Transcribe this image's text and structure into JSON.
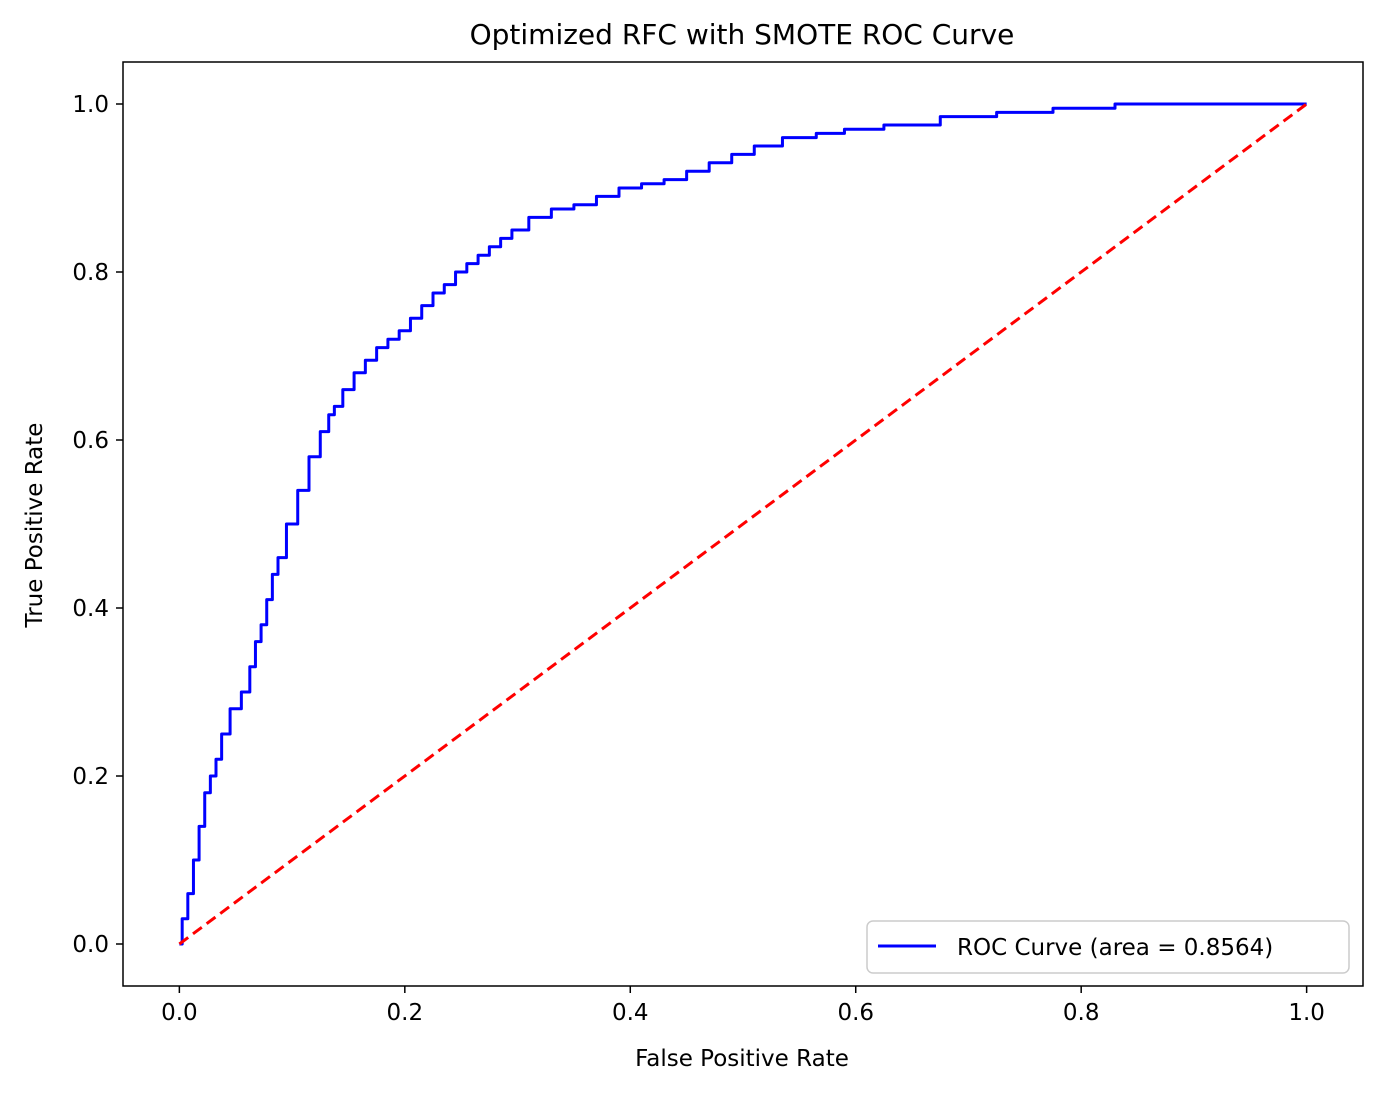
{
  "chart_data": {
    "type": "line",
    "title": "Optimized RFC with SMOTE ROC Curve",
    "xlabel": "False Positive Rate",
    "ylabel": "True Positive Rate",
    "xlim": [
      -0.05,
      1.05
    ],
    "ylim": [
      -0.05,
      1.05
    ],
    "xticks": [
      0.0,
      0.2,
      0.4,
      0.6,
      0.8,
      1.0
    ],
    "xtick_labels": [
      "0.0",
      "0.2",
      "0.4",
      "0.6",
      "0.8",
      "1.0"
    ],
    "yticks": [
      0.0,
      0.2,
      0.4,
      0.6,
      0.8,
      1.0
    ],
    "ytick_labels": [
      "0.0",
      "0.2",
      "0.4",
      "0.6",
      "0.8",
      "1.0"
    ],
    "grid": false,
    "legend_position": "lower-right",
    "series": [
      {
        "name": "ROC Curve (area = 0.8564)",
        "color": "#0000ff",
        "style": "solid",
        "x": [
          0.0,
          0.005,
          0.01,
          0.015,
          0.02,
          0.025,
          0.03,
          0.035,
          0.04,
          0.05,
          0.06,
          0.065,
          0.07,
          0.075,
          0.08,
          0.085,
          0.09,
          0.1,
          0.11,
          0.12,
          0.13,
          0.135,
          0.14,
          0.15,
          0.16,
          0.17,
          0.18,
          0.19,
          0.2,
          0.21,
          0.22,
          0.23,
          0.24,
          0.25,
          0.26,
          0.27,
          0.28,
          0.29,
          0.3,
          0.32,
          0.34,
          0.36,
          0.38,
          0.4,
          0.42,
          0.44,
          0.46,
          0.48,
          0.5,
          0.52,
          0.55,
          0.58,
          0.6,
          0.65,
          0.7,
          0.75,
          0.8,
          0.86,
          0.9,
          1.0
        ],
        "y": [
          0.0,
          0.03,
          0.06,
          0.1,
          0.14,
          0.18,
          0.2,
          0.22,
          0.25,
          0.28,
          0.3,
          0.33,
          0.36,
          0.38,
          0.41,
          0.44,
          0.46,
          0.5,
          0.54,
          0.58,
          0.61,
          0.63,
          0.64,
          0.66,
          0.68,
          0.695,
          0.71,
          0.72,
          0.73,
          0.745,
          0.76,
          0.775,
          0.785,
          0.8,
          0.81,
          0.82,
          0.83,
          0.84,
          0.85,
          0.865,
          0.875,
          0.88,
          0.89,
          0.9,
          0.905,
          0.91,
          0.92,
          0.93,
          0.94,
          0.95,
          0.96,
          0.965,
          0.97,
          0.975,
          0.985,
          0.99,
          0.995,
          1.0,
          1.0,
          1.0
        ]
      },
      {
        "name": "",
        "color": "#ff0000",
        "style": "dashed",
        "x": [
          0.0,
          1.0
        ],
        "y": [
          0.0,
          1.0
        ]
      }
    ]
  }
}
